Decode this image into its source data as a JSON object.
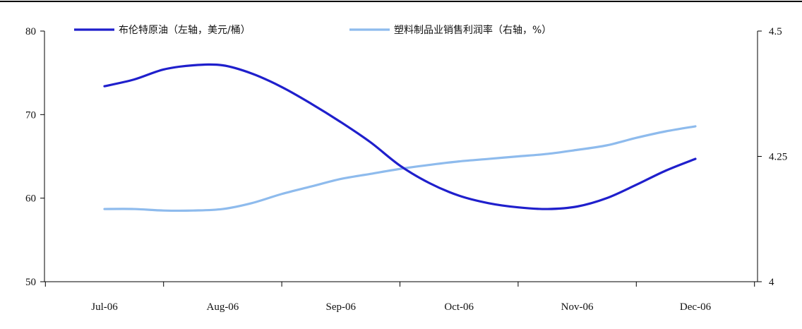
{
  "chart_data": {
    "type": "line",
    "title": "",
    "xlabel": "",
    "ylabel_left": "",
    "ylabel_right": "",
    "categories": [
      "Jul-06",
      "Aug-06",
      "Sep-06",
      "Oct-06",
      "Nov-06",
      "Dec-06"
    ],
    "x": [
      0,
      0.5,
      1,
      1.5,
      2,
      2.5,
      3,
      3.5,
      4,
      4.5,
      5,
      5.5,
      6,
      6.5,
      7,
      7.5,
      8,
      8.5,
      9,
      9.5,
      10
    ],
    "y_left": {
      "range": [
        50,
        80
      ],
      "ticks": [
        "80",
        "70",
        "60",
        "50"
      ]
    },
    "y_right": {
      "range": [
        4,
        4.5
      ],
      "ticks": [
        "4.5",
        "4.25",
        "4"
      ]
    },
    "grid": false,
    "legend_position": "top",
    "series": [
      {
        "name": "布伦特原油（左轴，美元/桶）",
        "axis": "left",
        "color": "#1f1fcc",
        "values": [
          73.4,
          74.2,
          75.4,
          75.9,
          75.9,
          74.9,
          73.3,
          71.3,
          69.1,
          66.7,
          63.9,
          61.8,
          60.3,
          59.4,
          58.9,
          58.7,
          59.0,
          60.0,
          61.6,
          63.3,
          64.7
        ]
      },
      {
        "name": "塑料制品业销售利润率（右轴，%）",
        "axis": "right",
        "color": "#8ebbed",
        "values": [
          4.145,
          4.145,
          4.142,
          4.142,
          4.145,
          4.157,
          4.175,
          4.19,
          4.205,
          4.215,
          4.225,
          4.233,
          4.24,
          4.245,
          4.25,
          4.255,
          4.263,
          4.272,
          4.287,
          4.3,
          4.31
        ]
      }
    ]
  }
}
